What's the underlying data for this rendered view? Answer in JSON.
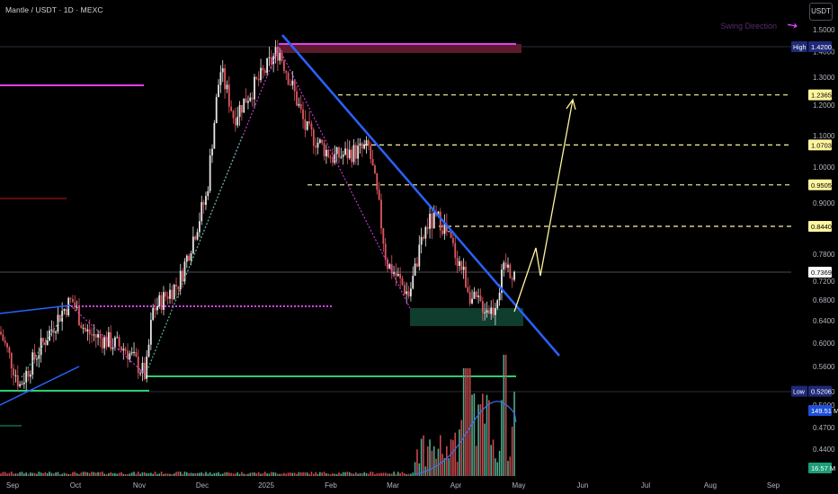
{
  "header": {
    "symbol_line": "Mantle / USDT · 1D · MEXC",
    "currency_button": "USDT",
    "side_note": "Swing Direction"
  },
  "price_axis": {
    "ticks": [
      "1.5000",
      "1.4000",
      "1.3000",
      "1.2000",
      "1.1000",
      "1.0000",
      "0.9000",
      "0.7800",
      "0.7200",
      "0.6800",
      "0.6400",
      "0.6000",
      "0.5600",
      "0.5200",
      "0.5000",
      "0.4700",
      "0.4400"
    ],
    "labels": [
      {
        "text": "1.4200",
        "tag": "High",
        "price": 1.42,
        "color": "#1e2a78",
        "fg": "#ffffff"
      },
      {
        "text": "1.2365",
        "price": 1.2365,
        "color": "#fff59d",
        "fg": "#000000"
      },
      {
        "text": "1.0703",
        "price": 1.0703,
        "color": "#fff59d",
        "fg": "#000000"
      },
      {
        "text": "0.9505",
        "price": 0.9505,
        "color": "#fff59d",
        "fg": "#000000"
      },
      {
        "text": "0.8440",
        "price": 0.844,
        "color": "#fff59d",
        "fg": "#000000"
      },
      {
        "text": "0.7369",
        "price": 0.7369,
        "color": "#ffffff",
        "fg": "#000000"
      },
      {
        "text": "0.5206",
        "tag": "Low",
        "price": 0.5206,
        "color": "#1e2a78",
        "fg": "#ffffff"
      },
      {
        "text": "149.51 M",
        "color": "#1e4fd8",
        "fg": "#ffffff"
      },
      {
        "text": "16.57 M",
        "color": "#1b9e77",
        "fg": "#ffffff"
      }
    ]
  },
  "time_axis": {
    "labels": [
      "Sep",
      "Oct",
      "Nov",
      "Dec",
      "2025",
      "Feb",
      "Mar",
      "Apr",
      "May",
      "Jun",
      "Jul",
      "Aug",
      "Sep"
    ]
  },
  "chart_data": {
    "type": "candlestick",
    "symbol": "Mantle / USDT",
    "timeframe": "1D",
    "exchange": "MEXC",
    "y_range": [
      0.42,
      1.53
    ],
    "last_price": 0.7369,
    "all_time_high_in_view": 1.42,
    "low_in_view": 0.5206,
    "target_levels": [
      0.844,
      0.9505,
      1.0703,
      1.2365
    ],
    "price_path_monthly": [
      {
        "month": "Sep",
        "close": 0.57
      },
      {
        "month": "Oct",
        "close": 0.6
      },
      {
        "month": "Nov",
        "close": 0.6
      },
      {
        "month": "Dec",
        "close": 1.15
      },
      {
        "month": "2025",
        "close": 1.33
      },
      {
        "month": "Feb",
        "close": 1.0
      },
      {
        "month": "Mar",
        "close": 0.75
      },
      {
        "month": "Apr",
        "close": 0.7
      },
      {
        "month": "May",
        "close": 0.737
      }
    ],
    "volume_last": "16.57 M",
    "volume_ma": "149.51 M"
  }
}
